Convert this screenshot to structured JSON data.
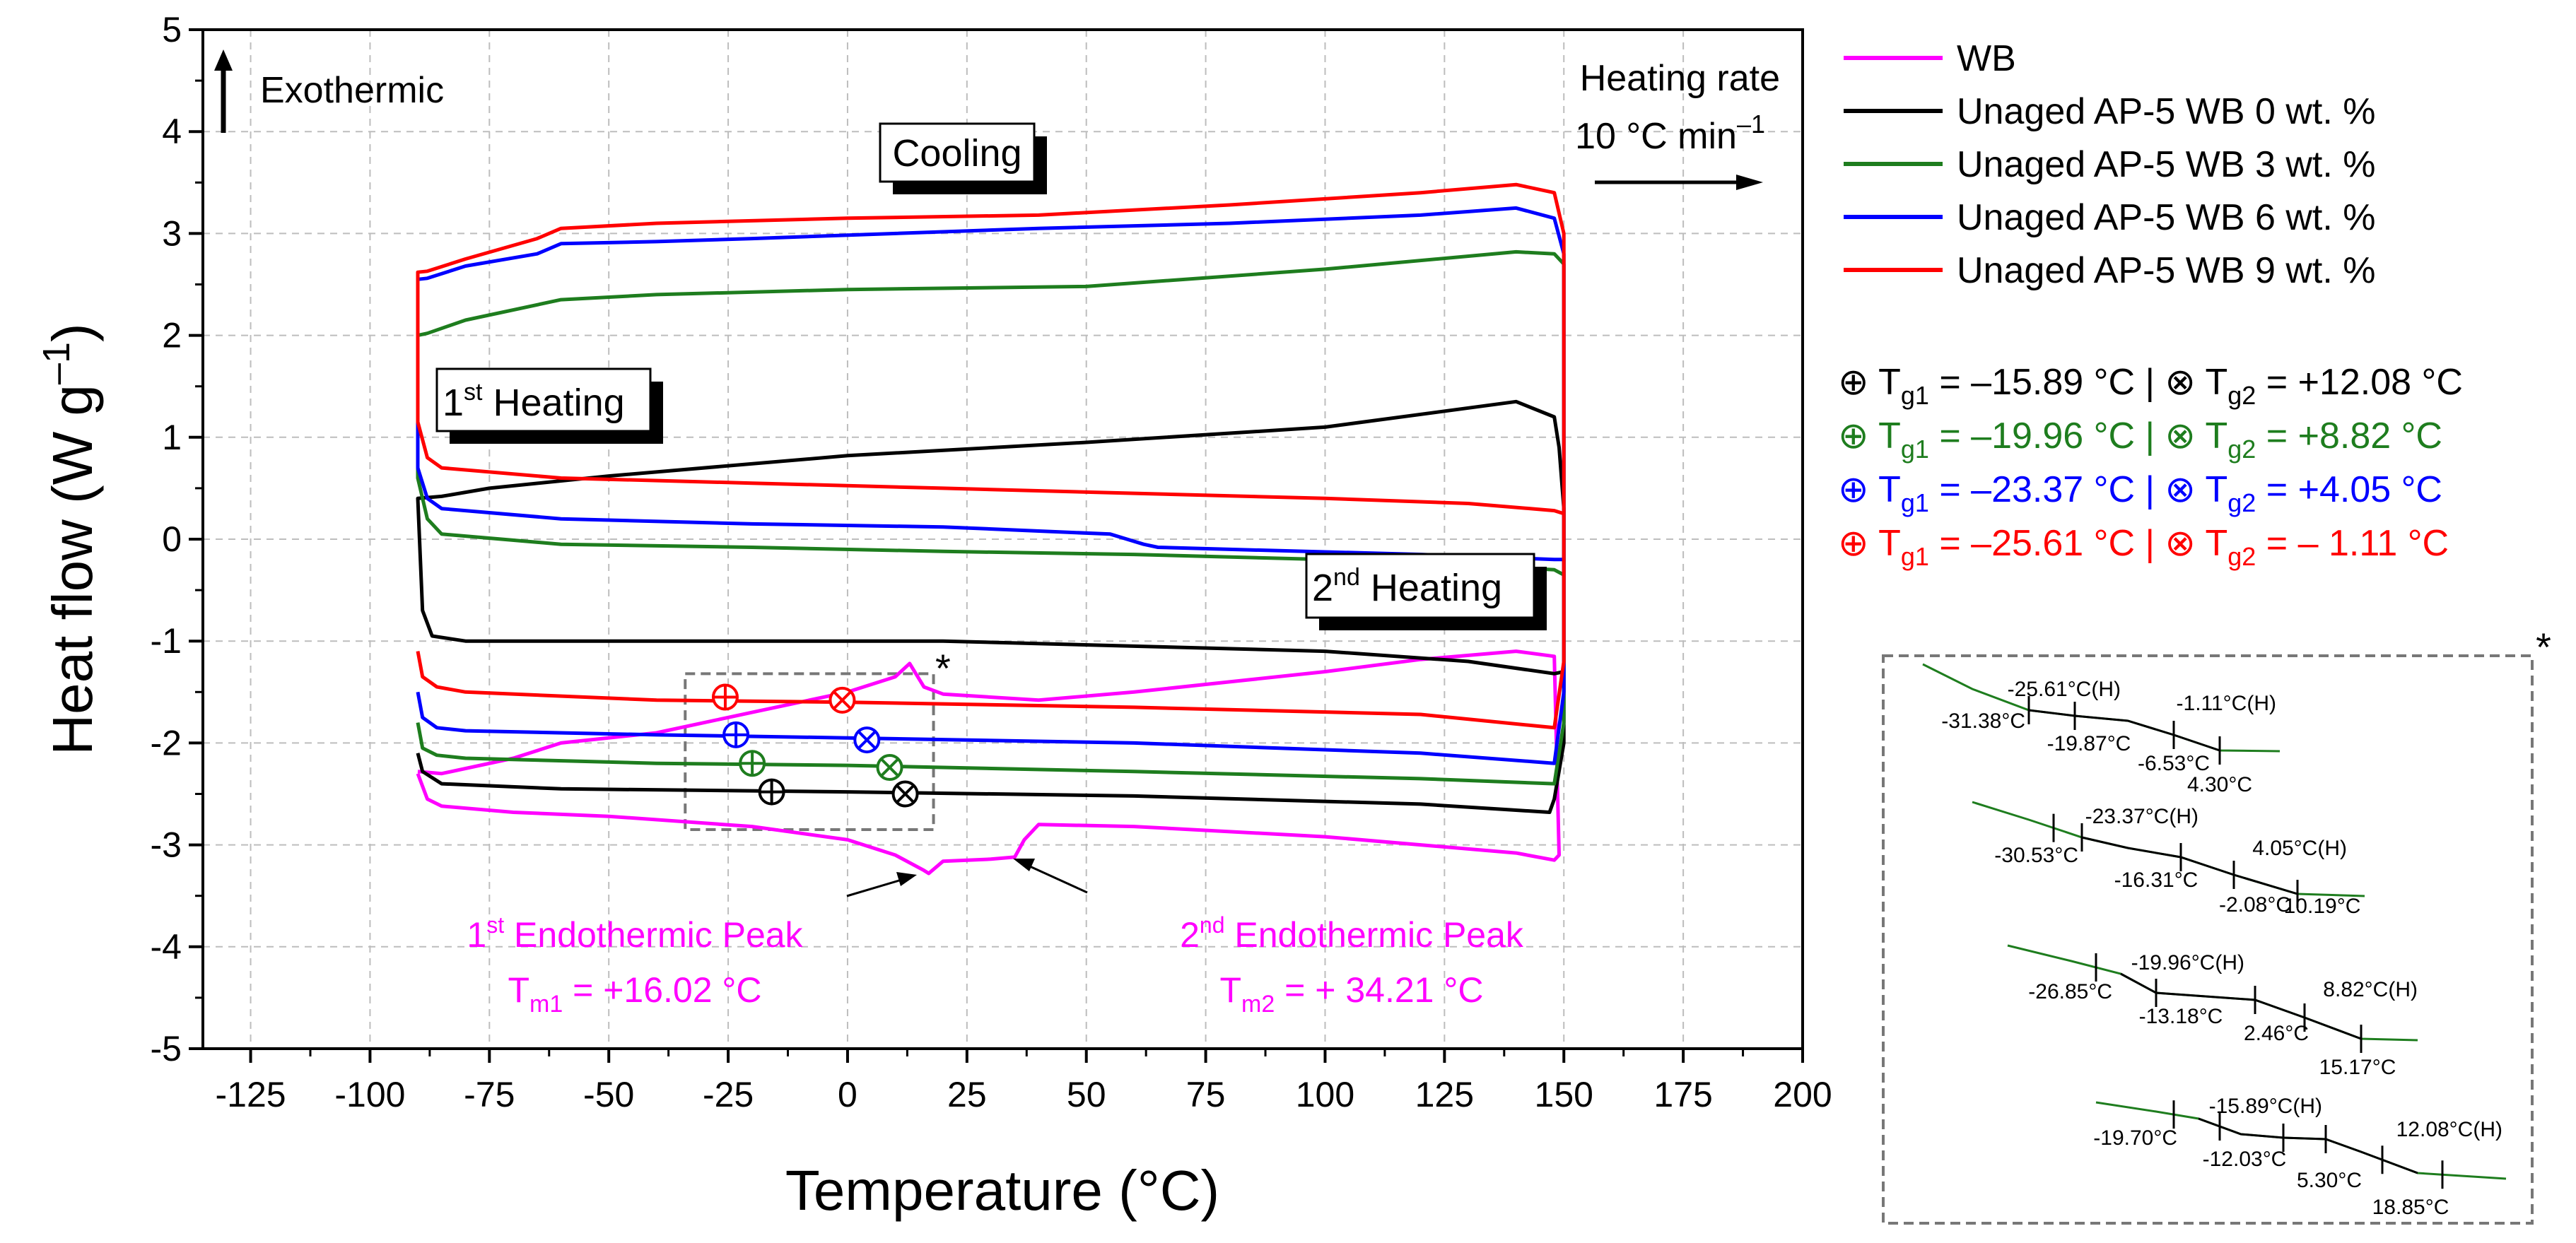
{
  "chart_data": {
    "type": "line",
    "xlabel": "Temperature (°C)",
    "ylabel": "Heat flow (W g",
    "ylabel_sup": "–1",
    "ylabel_close": ")",
    "xlim": [
      -135,
      200
    ],
    "ylim": [
      -5,
      5
    ],
    "xticks": [
      -125,
      -100,
      -75,
      -50,
      -25,
      0,
      25,
      50,
      75,
      100,
      125,
      150,
      175,
      200
    ],
    "yticks": [
      -5,
      -4,
      -3,
      -2,
      -1,
      0,
      1,
      2,
      3,
      4,
      5
    ],
    "grid": true,
    "colors": {
      "WB": "#ff00ff",
      "AP0": "#000000",
      "AP3": "#1e7d1e",
      "AP6": "#0000ff",
      "AP9": "#ff0000"
    },
    "legend": [
      {
        "key": "WB",
        "label": "WB"
      },
      {
        "key": "AP0",
        "label": "Unaged AP-5 WB 0 wt. %"
      },
      {
        "key": "AP3",
        "label": "Unaged AP-5 WB 3 wt. %"
      },
      {
        "key": "AP6",
        "label": "Unaged AP-5 WB 6 wt. %"
      },
      {
        "key": "AP9",
        "label": "Unaged AP-5 WB 9 wt. %"
      }
    ],
    "series": [
      {
        "name": "WB",
        "key": "WB",
        "points": [
          [
            -90,
            -2.28
          ],
          [
            -85,
            -2.3
          ],
          [
            -70,
            -2.15
          ],
          [
            -60,
            -2.0
          ],
          [
            -40,
            -1.9
          ],
          [
            -20,
            -1.7
          ],
          [
            0,
            -1.5
          ],
          [
            10,
            -1.35
          ],
          [
            13,
            -1.22
          ],
          [
            16,
            -1.45
          ],
          [
            20,
            -1.52
          ],
          [
            40,
            -1.58
          ],
          [
            60,
            -1.5
          ],
          [
            80,
            -1.4
          ],
          [
            100,
            -1.3
          ],
          [
            120,
            -1.18
          ],
          [
            140,
            -1.1
          ],
          [
            148,
            -1.15
          ],
          [
            149,
            -3.1
          ],
          [
            148,
            -3.15
          ],
          [
            140,
            -3.08
          ],
          [
            100,
            -2.92
          ],
          [
            60,
            -2.82
          ],
          [
            40,
            -2.8
          ],
          [
            37,
            -2.95
          ],
          [
            35,
            -3.12
          ],
          [
            30,
            -3.14
          ],
          [
            20,
            -3.16
          ],
          [
            17,
            -3.28
          ],
          [
            16,
            -3.25
          ],
          [
            10,
            -3.1
          ],
          [
            0,
            -2.95
          ],
          [
            -20,
            -2.82
          ],
          [
            -50,
            -2.72
          ],
          [
            -70,
            -2.68
          ],
          [
            -85,
            -2.62
          ],
          [
            -88,
            -2.55
          ],
          [
            -90,
            -2.3
          ]
        ]
      },
      {
        "name": "AP0 heating",
        "key": "AP0",
        "points": [
          [
            -90,
            -2.1
          ],
          [
            -89,
            -2.28
          ],
          [
            -85,
            -2.4
          ],
          [
            -60,
            -2.45
          ],
          [
            0,
            -2.48
          ],
          [
            60,
            -2.52
          ],
          [
            120,
            -2.6
          ],
          [
            147,
            -2.68
          ],
          [
            148,
            -2.55
          ],
          [
            150,
            -2.0
          ],
          [
            150,
            0.3
          ],
          [
            149,
            0.9
          ],
          [
            148,
            1.2
          ],
          [
            140,
            1.35
          ],
          [
            100,
            1.1
          ],
          [
            50,
            0.95
          ],
          [
            0,
            0.82
          ],
          [
            -50,
            0.62
          ],
          [
            -75,
            0.5
          ],
          [
            -85,
            0.42
          ],
          [
            -90,
            0.4
          ],
          [
            -89,
            -0.7
          ],
          [
            -87,
            -0.95
          ],
          [
            -80,
            -1.0
          ],
          [
            -60,
            -1.0
          ],
          [
            -20,
            -1.0
          ],
          [
            20,
            -1.0
          ],
          [
            60,
            -1.05
          ],
          [
            100,
            -1.1
          ],
          [
            130,
            -1.2
          ],
          [
            148,
            -1.32
          ],
          [
            150,
            -1.3
          ]
        ]
      },
      {
        "name": "AP3 heating",
        "key": "AP3",
        "points": [
          [
            -90,
            -1.8
          ],
          [
            -89,
            -2.05
          ],
          [
            -86,
            -2.12
          ],
          [
            -80,
            -2.15
          ],
          [
            -40,
            -2.2
          ],
          [
            0,
            -2.22
          ],
          [
            60,
            -2.28
          ],
          [
            120,
            -2.35
          ],
          [
            148,
            -2.4
          ],
          [
            150,
            -1.8
          ],
          [
            150,
            2.7
          ],
          [
            148,
            2.8
          ],
          [
            140,
            2.82
          ],
          [
            100,
            2.65
          ],
          [
            50,
            2.48
          ],
          [
            0,
            2.45
          ],
          [
            -40,
            2.4
          ],
          [
            -60,
            2.35
          ],
          [
            -80,
            2.15
          ],
          [
            -88,
            2.02
          ],
          [
            -90,
            2.0
          ],
          [
            -90,
            0.6
          ],
          [
            -88,
            0.2
          ],
          [
            -85,
            0.05
          ],
          [
            -60,
            -0.05
          ],
          [
            -20,
            -0.08
          ],
          [
            20,
            -0.12
          ],
          [
            60,
            -0.15
          ],
          [
            100,
            -0.2
          ],
          [
            140,
            -0.28
          ],
          [
            148,
            -0.3
          ],
          [
            150,
            -0.35
          ]
        ]
      },
      {
        "name": "AP6 heating",
        "key": "AP6",
        "points": [
          [
            -90,
            -1.5
          ],
          [
            -89,
            -1.75
          ],
          [
            -86,
            -1.85
          ],
          [
            -80,
            -1.88
          ],
          [
            -40,
            -1.92
          ],
          [
            0,
            -1.95
          ],
          [
            60,
            -2.0
          ],
          [
            120,
            -2.1
          ],
          [
            148,
            -2.2
          ],
          [
            150,
            -1.5
          ],
          [
            150,
            2.8
          ],
          [
            148,
            3.15
          ],
          [
            140,
            3.25
          ],
          [
            120,
            3.18
          ],
          [
            80,
            3.1
          ],
          [
            40,
            3.05
          ],
          [
            -20,
            2.95
          ],
          [
            -40,
            2.92
          ],
          [
            -60,
            2.9
          ],
          [
            -65,
            2.8
          ],
          [
            -80,
            2.68
          ],
          [
            -88,
            2.56
          ],
          [
            -90,
            2.55
          ],
          [
            -90,
            0.7
          ],
          [
            -88,
            0.4
          ],
          [
            -85,
            0.3
          ],
          [
            -60,
            0.2
          ],
          [
            -20,
            0.15
          ],
          [
            20,
            0.12
          ],
          [
            55,
            0.05
          ],
          [
            62,
            -0.05
          ],
          [
            65,
            -0.08
          ],
          [
            80,
            -0.1
          ],
          [
            120,
            -0.15
          ],
          [
            148,
            -0.2
          ],
          [
            150,
            -0.2
          ]
        ]
      },
      {
        "name": "AP9 heating",
        "key": "AP9",
        "points": [
          [
            -90,
            -1.1
          ],
          [
            -89,
            -1.35
          ],
          [
            -86,
            -1.45
          ],
          [
            -80,
            -1.5
          ],
          [
            -40,
            -1.58
          ],
          [
            0,
            -1.6
          ],
          [
            60,
            -1.65
          ],
          [
            120,
            -1.72
          ],
          [
            148,
            -1.85
          ],
          [
            150,
            -1.2
          ],
          [
            150,
            3.0
          ],
          [
            148,
            3.4
          ],
          [
            140,
            3.48
          ],
          [
            120,
            3.4
          ],
          [
            80,
            3.28
          ],
          [
            40,
            3.18
          ],
          [
            0,
            3.15
          ],
          [
            -40,
            3.1
          ],
          [
            -60,
            3.05
          ],
          [
            -65,
            2.95
          ],
          [
            -80,
            2.75
          ],
          [
            -88,
            2.63
          ],
          [
            -90,
            2.62
          ],
          [
            -90,
            1.15
          ],
          [
            -88,
            0.8
          ],
          [
            -85,
            0.7
          ],
          [
            -60,
            0.6
          ],
          [
            -20,
            0.55
          ],
          [
            20,
            0.5
          ],
          [
            60,
            0.45
          ],
          [
            100,
            0.4
          ],
          [
            130,
            0.35
          ],
          [
            148,
            0.28
          ],
          [
            150,
            0.25
          ]
        ]
      }
    ],
    "markers": [
      {
        "key": "AP0",
        "type": "oplus",
        "x": -15.89,
        "y": -2.48
      },
      {
        "key": "AP0",
        "type": "otimes",
        "x": 12.08,
        "y": -2.5
      },
      {
        "key": "AP3",
        "type": "oplus",
        "x": -19.96,
        "y": -2.2
      },
      {
        "key": "AP3",
        "type": "otimes",
        "x": 8.82,
        "y": -2.24
      },
      {
        "key": "AP6",
        "type": "oplus",
        "x": -23.37,
        "y": -1.92
      },
      {
        "key": "AP6",
        "type": "otimes",
        "x": 4.05,
        "y": -1.97
      },
      {
        "key": "AP9",
        "type": "oplus",
        "x": -25.61,
        "y": -1.55
      },
      {
        "key": "AP9",
        "type": "otimes",
        "x": -1.11,
        "y": -1.58
      }
    ],
    "dashed_box": {
      "x0": -34,
      "x1": 18,
      "y0": -2.85,
      "y1": -1.32
    },
    "annotations": {
      "exothermic": "Exothermic",
      "heating_rate": "Heating rate",
      "heating_rate_value": "10 °C min",
      "heating_rate_sup": "–1",
      "cooling": "Cooling",
      "first_heating_pre": "1",
      "first_heating_sup": "st",
      "first_heating_post": " Heating",
      "second_heating_pre": "2",
      "second_heating_sup": "nd",
      "second_heating_post": " Heating",
      "asterisk": "*",
      "peak1_line1_pre": "1",
      "peak1_line1_sup": "st",
      "peak1_line1_post": " Endothermic Peak",
      "peak1_line2_pre": "T",
      "peak1_line2_sub": "m1",
      "peak1_line2_post": " = +16.02 °C",
      "peak2_line1_pre": "2",
      "peak2_line1_sup": "nd",
      "peak2_line1_post": " Endothermic Peak",
      "peak2_line2_pre": "T",
      "peak2_line2_sub": "m2",
      "peak2_line2_post": " = + 34.21 °C"
    },
    "tg_labels": [
      {
        "key": "AP0",
        "sym1": "⊕",
        "t1": " T",
        "s1": "g1",
        "v1": " = –15.89 °C | ",
        "sym2": "⊗",
        "t2": " T",
        "s2": "g2",
        "v2": " = +12.08 °C"
      },
      {
        "key": "AP3",
        "sym1": "⊕",
        "t1": " T",
        "s1": "g1",
        "v1": " = –19.96 °C | ",
        "sym2": "⊗",
        "t2": " T",
        "s2": "g2",
        "v2": " = +8.82 °C"
      },
      {
        "key": "AP6",
        "sym1": "⊕",
        "t1": " T",
        "s1": "g1",
        "v1": " = –23.37 °C | ",
        "sym2": "⊗",
        "t2": " T",
        "s2": "g2",
        "v2": " = +4.05 °C"
      },
      {
        "key": "AP9",
        "sym1": "⊕",
        "t1": " T",
        "s1": "g1",
        "v1": " = –25.61 °C | ",
        "sym2": "⊗",
        "t2": " T",
        "s2": "g2",
        "v2": " = – 1.11 °C"
      }
    ],
    "inset": {
      "asterisk": "*",
      "sets": [
        {
          "labels": [
            "-25.61°C(H)",
            "-1.11°C(H)",
            "-31.38°C",
            "-19.87°C",
            "-6.53°C",
            "4.30°C"
          ]
        },
        {
          "labels": [
            "-23.37°C(H)",
            "4.05°C(H)",
            "-30.53°C",
            "-16.31°C",
            "-2.08°C",
            "10.19°C"
          ]
        },
        {
          "labels": [
            "-19.96°C(H)",
            "8.82°C(H)",
            "-26.85°C",
            "-13.18°C",
            "2.46°C",
            "15.17°C"
          ]
        },
        {
          "labels": [
            "-15.89°C(H)",
            "12.08°C(H)",
            "-19.70°C",
            "-12.03°C",
            "5.30°C",
            "18.85°C"
          ]
        }
      ]
    }
  }
}
